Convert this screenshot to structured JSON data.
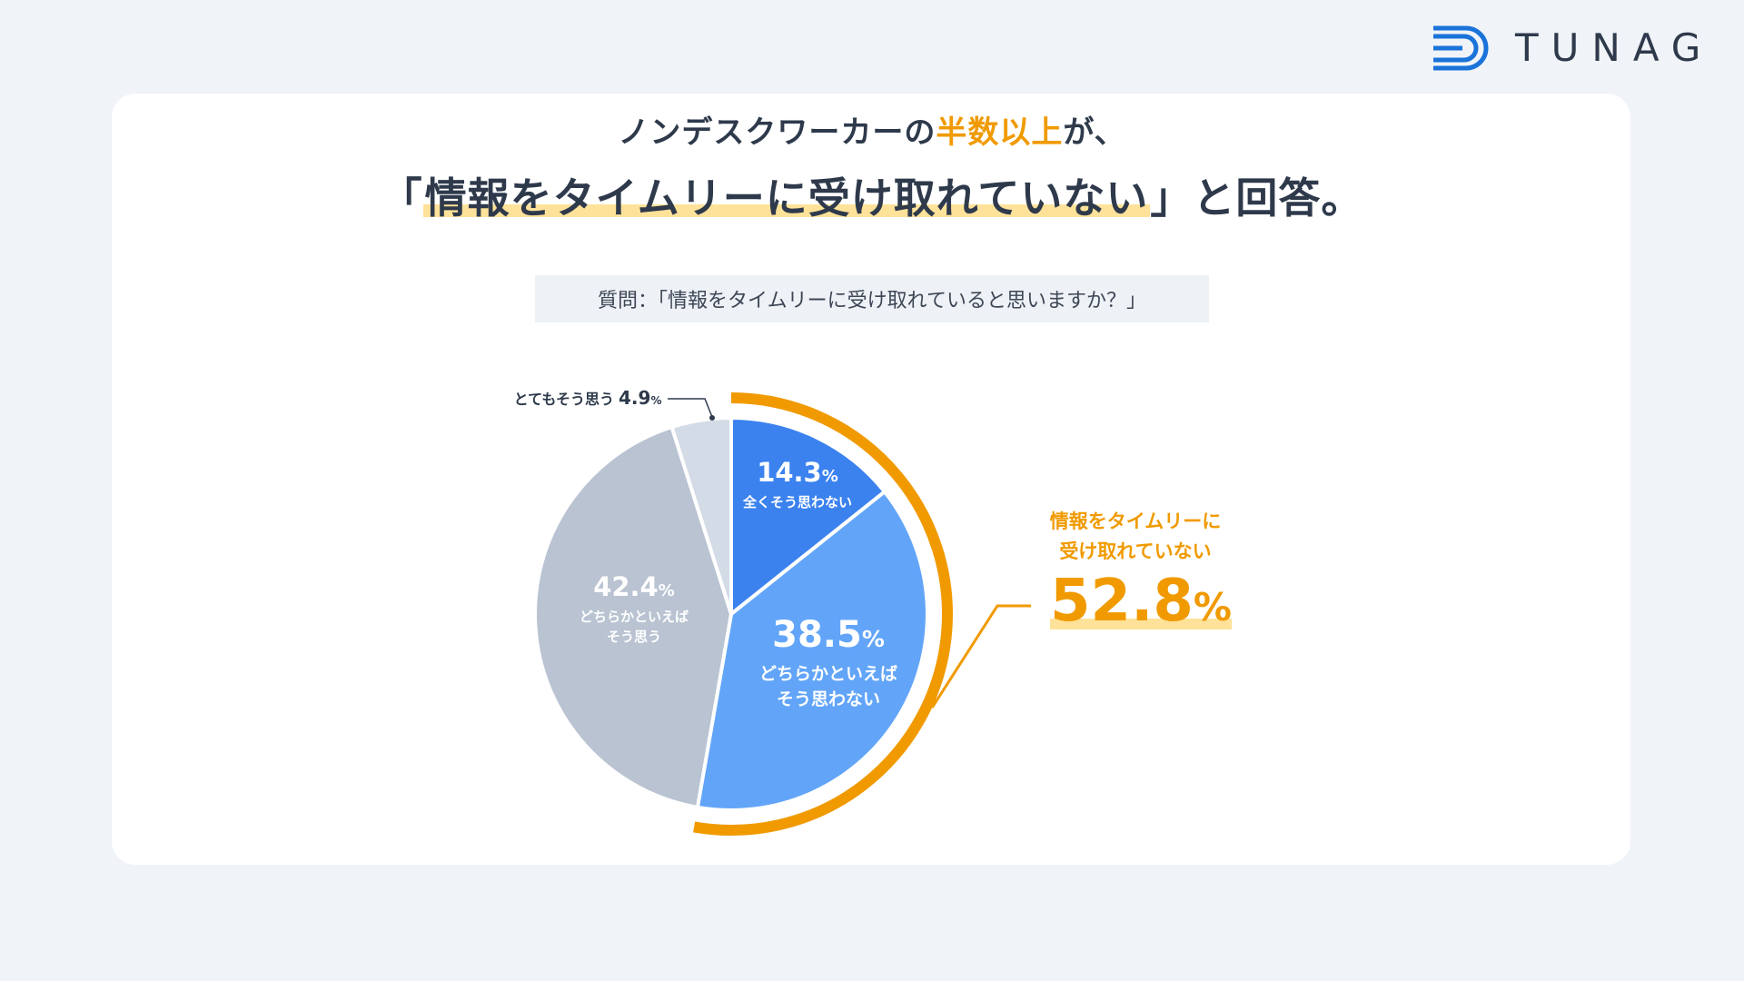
{
  "logo": {
    "text": "TUNAG",
    "icon": "tunag-d-logo-icon",
    "color": "#1a73d9"
  },
  "headline": {
    "line1_prefix": "ノンデスクワーカーの",
    "line1_accent": "半数以上",
    "line1_suffix": "が、",
    "line2_open": "「",
    "line2_highlight": "情報をタイムリーに受け取れていない",
    "line2_suffix": "」と回答。"
  },
  "question": "質問：「情報をタイムリーに受け取れていると思いますか？」",
  "summary": {
    "label_line1": "情報をタイムリーに",
    "label_line2": "受け取れていない",
    "value": "52.8",
    "unit": "%"
  },
  "colors": {
    "accent": "#f09a00",
    "dark_blue": "#3b82ef",
    "light_blue": "#62a5f8",
    "gray": "#b9c3d2",
    "light_gray": "#d3dbe6"
  },
  "chart_data": {
    "type": "pie",
    "unit": "%",
    "slices": [
      {
        "label": "全くそう思わない",
        "value": 14.3,
        "color": "#3b82ef",
        "label_lines": [
          "全くそう思わない"
        ]
      },
      {
        "label": "どちらかといえばそう思わない",
        "value": 38.5,
        "color": "#62a5f8",
        "label_lines": [
          "どちらかといえば",
          "そう思わない"
        ]
      },
      {
        "label": "どちらかといえばそう思う",
        "value": 42.4,
        "color": "#b9c3d2",
        "label_lines": [
          "どちらかといえば",
          "そう思う"
        ]
      },
      {
        "label": "とてもそう思う",
        "value": 4.9,
        "color": "#d3dbe6",
        "label_lines": [
          "とてもそう思う"
        ]
      }
    ]
  }
}
